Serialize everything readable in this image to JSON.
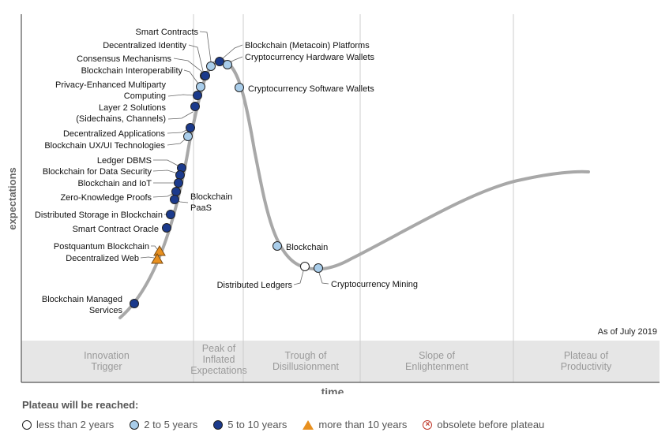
{
  "chart_data": {
    "type": "hype-cycle",
    "as_of": "As of July 2019",
    "ylabel": "expectations",
    "xlabel": "time",
    "phases": [
      "Innovation Trigger",
      "Peak of Inflated Expectations",
      "Trough of Disillusionment",
      "Slope of Enlightenment",
      "Plateau of Productivity"
    ],
    "technologies": [
      {
        "name": "Smart Contracts",
        "plateau": "2 to 5 years"
      },
      {
        "name": "Decentralized Identity",
        "plateau": "2 to 5 years"
      },
      {
        "name": "Consensus Mechanisms",
        "plateau": "5 to 10 years"
      },
      {
        "name": "Blockchain Interoperability",
        "plateau": "2 to 5 years"
      },
      {
        "name": "Privacy-Enhanced Multiparty Computing",
        "plateau": "5 to 10 years"
      },
      {
        "name": "Layer 2 Solutions (Sidechains, Channels)",
        "plateau": "5 to 10 years"
      },
      {
        "name": "Decentralized Applications",
        "plateau": "5 to 10 years"
      },
      {
        "name": "Blockchain UX/UI Technologies",
        "plateau": "2 to 5 years"
      },
      {
        "name": "Ledger DBMS",
        "plateau": "5 to 10 years"
      },
      {
        "name": "Blockchain for Data Security",
        "plateau": "5 to 10 years"
      },
      {
        "name": "Blockchain and IoT",
        "plateau": "5 to 10 years"
      },
      {
        "name": "Zero-Knowledge Proofs",
        "plateau": "5 to 10 years"
      },
      {
        "name": "Blockchain PaaS",
        "plateau": "5 to 10 years"
      },
      {
        "name": "Distributed Storage in Blockchain",
        "plateau": "5 to 10 years"
      },
      {
        "name": "Smart Contract Oracle",
        "plateau": "5 to 10 years"
      },
      {
        "name": "Postquantum Blockchain",
        "plateau": "more than 10 years"
      },
      {
        "name": "Decentralized Web",
        "plateau": "more than 10 years"
      },
      {
        "name": "Blockchain Managed Services",
        "plateau": "5 to 10 years"
      },
      {
        "name": "Blockchain (Metacoin) Platforms",
        "plateau": "5 to 10 years"
      },
      {
        "name": "Cryptocurrency Hardware Wallets",
        "plateau": "2 to 5 years"
      },
      {
        "name": "Cryptocurrency Software Wallets",
        "plateau": "2 to 5 years"
      },
      {
        "name": "Blockchain",
        "plateau": "2 to 5 years"
      },
      {
        "name": "Distributed Ledgers",
        "plateau": "less than 2 years"
      },
      {
        "name": "Cryptocurrency Mining",
        "plateau": "2 to 5 years"
      }
    ],
    "legend": {
      "title": "Plateau will be reached:",
      "items": [
        {
          "label": "less than 2 years",
          "symbol": "white-circle"
        },
        {
          "label": "2 to 5 years",
          "symbol": "light-blue-circle"
        },
        {
          "label": "5 to 10 years",
          "symbol": "dark-blue-circle"
        },
        {
          "label": "more than 10 years",
          "symbol": "orange-triangle"
        },
        {
          "label": "obsolete before plateau",
          "symbol": "red-crossed-circle"
        }
      ]
    },
    "colors": {
      "less than 2 years": "#ffffff",
      "2 to 5 years": "#a9cdea",
      "5 to 10 years": "#1b3a8c",
      "more than 10 years": "#e8901f",
      "obsolete": "#c0392b",
      "curve": "#a8a8a8",
      "phase_band": "#e6e6e6",
      "phase_text": "#9a9a9a"
    }
  }
}
